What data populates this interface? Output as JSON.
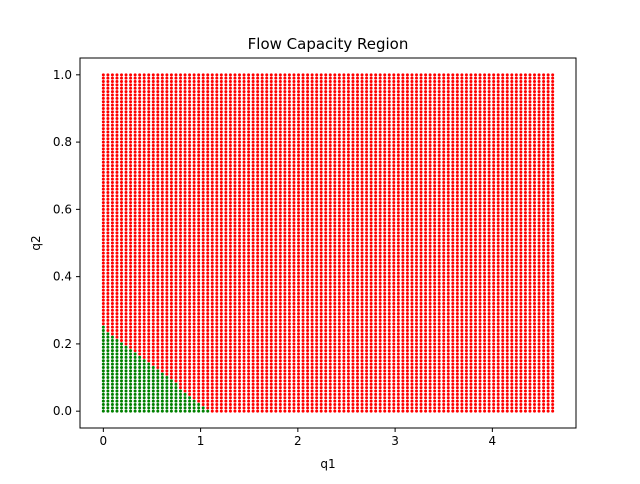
{
  "chart_data": {
    "type": "scatter",
    "title": "Flow Capacity Region",
    "xlabel": "q1",
    "ylabel": "q2",
    "xlim": [
      -0.24,
      4.86
    ],
    "ylim": [
      -0.05,
      1.05
    ],
    "xticks": [
      "0",
      "1",
      "2",
      "3",
      "4"
    ],
    "xtick_values": [
      0,
      1,
      2,
      3,
      4
    ],
    "yticks": [
      "0.0",
      "0.2",
      "0.4",
      "0.6",
      "0.8",
      "1.0"
    ],
    "ytick_values": [
      0.0,
      0.2,
      0.4,
      0.6,
      0.8,
      1.0
    ],
    "grid": false,
    "legend": "none",
    "grid_points": {
      "x_range": [
        0,
        4.62
      ],
      "y_range": [
        0,
        1.0
      ],
      "x_count": 100,
      "y_count": 101
    },
    "series": [
      {
        "color": "#008000",
        "rule": "feasible region: q1/1.1 + q2/0.25 <= 1",
        "boundary": {
          "x_intercept": 1.1,
          "y_intercept": 0.25
        }
      },
      {
        "color": "#ff0000",
        "rule": "infeasible region: remaining grid points"
      }
    ],
    "marker_size": "small"
  }
}
